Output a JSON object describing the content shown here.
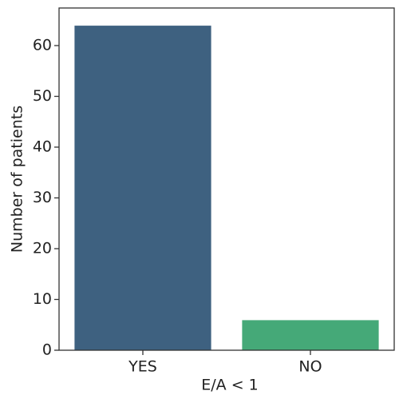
{
  "chart_data": {
    "type": "bar",
    "categories": [
      "YES",
      "NO"
    ],
    "series": [
      {
        "values": [
          64,
          6
        ],
        "colors": [
          "#3e6180",
          "#45a978"
        ]
      }
    ],
    "x_label": "E/A < 1",
    "y_label": "Number of patients",
    "ylim": [
      0,
      67.4
    ],
    "yticks": [
      0,
      10,
      20,
      30,
      40,
      50,
      60
    ],
    "grid": false
  }
}
